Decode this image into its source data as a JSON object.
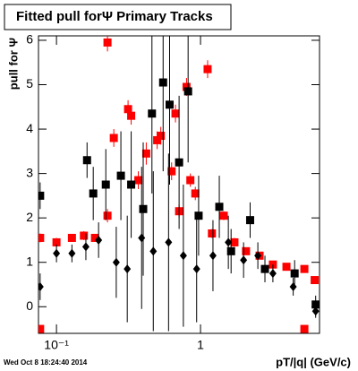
{
  "chart_data": {
    "type": "scatter",
    "title": "Fitted pull forΨ   Primary Tracks",
    "x_label": "pT/|q| (GeV/c)",
    "y_label": "pull for Ψ",
    "footer": "Wed Oct  8 18:24:40 2014",
    "xscale": "log",
    "xlim": [
      0.075,
      6.7
    ],
    "ylim": [
      -0.6,
      6.1
    ],
    "xticks": [
      {
        "value": 0.1,
        "label": "10⁻¹"
      },
      1
    ],
    "yticks": [
      0,
      1,
      2,
      3,
      4,
      5,
      6
    ],
    "series": [
      {
        "name": "red squares",
        "color": "#ff0000",
        "marker": "square",
        "x": [
          0.077,
          0.1,
          0.128,
          0.155,
          0.185,
          0.226,
          0.25,
          0.314,
          0.33,
          0.37,
          0.42,
          0.5,
          0.53,
          0.63,
          0.67,
          0.71,
          0.8,
          0.85,
          0.92,
          1.12,
          1.2,
          1.45,
          1.72,
          2.07,
          2.57,
          3.18,
          3.95,
          5.26,
          6.2,
          0.226,
          5.26,
          0.077
        ],
        "values": [
          1.55,
          1.45,
          1.55,
          1.6,
          1.55,
          2.05,
          3.8,
          4.45,
          4.3,
          2.85,
          3.45,
          3.75,
          3.85,
          3.05,
          4.35,
          2.15,
          4.95,
          2.85,
          2.55,
          5.35,
          1.65,
          2.05,
          1.45,
          1.25,
          1.15,
          0.95,
          0.9,
          0.85,
          0.6,
          5.95,
          -0.5,
          -0.5
        ],
        "errors": [
          0.1,
          0.1,
          0.08,
          0.1,
          0.08,
          0.15,
          0.2,
          0.2,
          0.2,
          0.2,
          0.25,
          0.2,
          0.2,
          0.2,
          0.2,
          0.15,
          0.2,
          0.15,
          0.15,
          0.2,
          0.1,
          0.1,
          0.1,
          0.08,
          0.08,
          0.06,
          0.06,
          0.06,
          0.06,
          0.2,
          0.05,
          0.05
        ]
      },
      {
        "name": "black squares",
        "color": "#000000",
        "marker": "square",
        "x": [
          0.077,
          0.163,
          0.18,
          0.22,
          0.28,
          0.33,
          0.4,
          0.46,
          0.55,
          0.61,
          0.71,
          0.82,
          0.97,
          1.35,
          1.63,
          2.21,
          2.8,
          4.5,
          6.3
        ],
        "values": [
          2.5,
          3.3,
          2.55,
          2.75,
          2.95,
          2.75,
          2.2,
          4.35,
          5.05,
          4.55,
          3.25,
          4.85,
          2.05,
          2.25,
          1.25,
          1.95,
          0.85,
          0.75,
          0.05
        ],
        "errors": [
          0.3,
          0.4,
          0.6,
          0.8,
          1.0,
          1.2,
          1.5,
          1.8,
          2.0,
          1.8,
          1.5,
          1.6,
          0.9,
          0.7,
          0.5,
          0.4,
          0.3,
          0.3,
          0.2
        ]
      },
      {
        "name": "black diamonds",
        "color": "#000000",
        "marker": "diamond",
        "x": [
          0.077,
          0.1,
          0.128,
          0.16,
          0.196,
          0.26,
          0.31,
          0.39,
          0.47,
          0.6,
          0.76,
          0.94,
          1.22,
          1.56,
          1.99,
          2.5,
          3.18,
          4.4,
          6.3
        ],
        "values": [
          0.45,
          1.2,
          1.2,
          1.35,
          1.5,
          1.0,
          0.85,
          1.55,
          1.25,
          1.45,
          1.15,
          0.85,
          1.15,
          1.45,
          1.05,
          1.15,
          0.75,
          0.45,
          -0.1
        ],
        "errors": [
          0.3,
          0.2,
          0.2,
          0.3,
          0.4,
          0.8,
          1.2,
          1.6,
          1.8,
          2.0,
          1.6,
          1.2,
          0.8,
          0.6,
          0.4,
          0.3,
          0.2,
          0.2,
          0.15
        ]
      }
    ]
  }
}
